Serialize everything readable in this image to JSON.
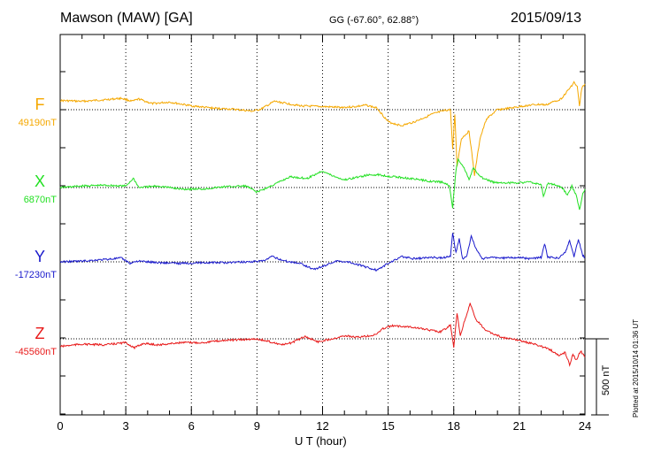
{
  "header": {
    "station": "Mawson (MAW)  [GA]",
    "coords": "GG (-67.60°,  62.88°)",
    "date": "2015/09/13"
  },
  "footer": {
    "plotted": "Plotted at 2015/10/14 01:36 UT"
  },
  "chart_data": {
    "type": "line",
    "title": "Mawson (MAW)  [GA]",
    "xlabel": "U T (hour)",
    "ylabel": "",
    "xlim": [
      0,
      24
    ],
    "x_ticks": [
      "0",
      "3",
      "6",
      "9",
      "12",
      "15",
      "18",
      "21",
      "24"
    ],
    "grid": true,
    "y_unit": "nT",
    "scale_bar": {
      "label": "500 nT",
      "value": 500
    },
    "series": [
      {
        "name": "F",
        "baseline_label": "49190nT",
        "baseline": 49190,
        "color": "#f5a800",
        "points": [
          [
            0,
            49250
          ],
          [
            1,
            49245
          ],
          [
            2,
            49255
          ],
          [
            2.8,
            49265
          ],
          [
            3.3,
            49245
          ],
          [
            3.6,
            49260
          ],
          [
            4.2,
            49230
          ],
          [
            5,
            49240
          ],
          [
            6,
            49215
          ],
          [
            7,
            49200
          ],
          [
            8,
            49192
          ],
          [
            8.8,
            49180
          ],
          [
            9.2,
            49195
          ],
          [
            9.8,
            49245
          ],
          [
            10.4,
            49230
          ],
          [
            11,
            49215
          ],
          [
            12,
            49210
          ],
          [
            12.8,
            49205
          ],
          [
            13.5,
            49210
          ],
          [
            14,
            49220
          ],
          [
            14.5,
            49200
          ],
          [
            15,
            49110
          ],
          [
            15.6,
            49085
          ],
          [
            16.2,
            49110
          ],
          [
            17,
            49160
          ],
          [
            17.6,
            49185
          ],
          [
            17.85,
            49190
          ],
          [
            17.95,
            48930
          ],
          [
            18.05,
            49160
          ],
          [
            18.15,
            48820
          ],
          [
            18.35,
            49000
          ],
          [
            18.7,
            49050
          ],
          [
            18.95,
            48760
          ],
          [
            19.2,
            49000
          ],
          [
            19.5,
            49130
          ],
          [
            20,
            49190
          ],
          [
            20.6,
            49200
          ],
          [
            21,
            49210
          ],
          [
            21.5,
            49220
          ],
          [
            22,
            49225
          ],
          [
            22.2,
            49220
          ],
          [
            22.6,
            49245
          ],
          [
            22.9,
            49260
          ],
          [
            23.3,
            49330
          ],
          [
            23.5,
            49370
          ],
          [
            23.65,
            49340
          ],
          [
            23.75,
            49210
          ],
          [
            23.85,
            49330
          ],
          [
            24,
            49360
          ]
        ]
      },
      {
        "name": "X",
        "baseline_label": "6870nT",
        "baseline": 6870,
        "color": "#22e022",
        "points": [
          [
            0,
            6870
          ],
          [
            1,
            6880
          ],
          [
            2,
            6885
          ],
          [
            3,
            6880
          ],
          [
            3.35,
            6930
          ],
          [
            3.6,
            6870
          ],
          [
            4.5,
            6880
          ],
          [
            5.5,
            6860
          ],
          [
            6.5,
            6860
          ],
          [
            7.5,
            6875
          ],
          [
            8.5,
            6880
          ],
          [
            9,
            6840
          ],
          [
            9.5,
            6870
          ],
          [
            10.5,
            6940
          ],
          [
            11.3,
            6930
          ],
          [
            12,
            6980
          ],
          [
            12.4,
            6950
          ],
          [
            13,
            6920
          ],
          [
            13.5,
            6935
          ],
          [
            14,
            6950
          ],
          [
            14.5,
            6955
          ],
          [
            15,
            6945
          ],
          [
            16,
            6930
          ],
          [
            17,
            6910
          ],
          [
            17.5,
            6905
          ],
          [
            17.8,
            6880
          ],
          [
            17.95,
            6740
          ],
          [
            18.1,
            6980
          ],
          [
            18.2,
            7060
          ],
          [
            18.5,
            6990
          ],
          [
            18.7,
            6920
          ],
          [
            18.9,
            7000
          ],
          [
            19.2,
            6940
          ],
          [
            19.8,
            6905
          ],
          [
            20.5,
            6900
          ],
          [
            21.5,
            6905
          ],
          [
            22,
            6890
          ],
          [
            22.1,
            6810
          ],
          [
            22.3,
            6900
          ],
          [
            22.8,
            6880
          ],
          [
            23,
            6860
          ],
          [
            23.2,
            6820
          ],
          [
            23.4,
            6880
          ],
          [
            23.6,
            6820
          ],
          [
            23.75,
            6720
          ],
          [
            23.9,
            6830
          ],
          [
            24,
            6860
          ]
        ]
      },
      {
        "name": "Y",
        "baseline_label": "-17230nT",
        "baseline": -17230,
        "color": "#1a1acc",
        "points": [
          [
            0,
            -17230
          ],
          [
            1,
            -17225
          ],
          [
            2,
            -17215
          ],
          [
            2.8,
            -17205
          ],
          [
            3.2,
            -17240
          ],
          [
            3.5,
            -17225
          ],
          [
            4.5,
            -17235
          ],
          [
            5.5,
            -17240
          ],
          [
            6.5,
            -17235
          ],
          [
            7.5,
            -17235
          ],
          [
            8.5,
            -17230
          ],
          [
            9.3,
            -17225
          ],
          [
            9.7,
            -17195
          ],
          [
            10.3,
            -17225
          ],
          [
            11,
            -17240
          ],
          [
            11.6,
            -17280
          ],
          [
            12,
            -17260
          ],
          [
            12.6,
            -17225
          ],
          [
            13.2,
            -17230
          ],
          [
            14,
            -17265
          ],
          [
            14.5,
            -17285
          ],
          [
            15,
            -17240
          ],
          [
            15.6,
            -17195
          ],
          [
            16.2,
            -17210
          ],
          [
            17,
            -17200
          ],
          [
            17.5,
            -17205
          ],
          [
            17.85,
            -17190
          ],
          [
            17.95,
            -17040
          ],
          [
            18.1,
            -17170
          ],
          [
            18.25,
            -17080
          ],
          [
            18.4,
            -17210
          ],
          [
            18.6,
            -17190
          ],
          [
            18.8,
            -17060
          ],
          [
            19,
            -17140
          ],
          [
            19.3,
            -17210
          ],
          [
            19.8,
            -17200
          ],
          [
            20.3,
            -17205
          ],
          [
            21,
            -17200
          ],
          [
            21.5,
            -17210
          ],
          [
            22,
            -17200
          ],
          [
            22.15,
            -17110
          ],
          [
            22.3,
            -17200
          ],
          [
            22.8,
            -17205
          ],
          [
            23.1,
            -17170
          ],
          [
            23.3,
            -17090
          ],
          [
            23.5,
            -17200
          ],
          [
            23.7,
            -17080
          ],
          [
            23.9,
            -17190
          ],
          [
            24,
            -17200
          ]
        ]
      },
      {
        "name": "Z",
        "baseline_label": "-45560nT",
        "baseline": -45560,
        "color": "#e81a1a",
        "points": [
          [
            0,
            -45610
          ],
          [
            1,
            -45595
          ],
          [
            2,
            -45600
          ],
          [
            3,
            -45585
          ],
          [
            3.4,
            -45620
          ],
          [
            3.8,
            -45590
          ],
          [
            4.5,
            -45600
          ],
          [
            5.5,
            -45585
          ],
          [
            6.5,
            -45585
          ],
          [
            7.5,
            -45570
          ],
          [
            8.5,
            -45565
          ],
          [
            9,
            -45560
          ],
          [
            9.6,
            -45580
          ],
          [
            10.2,
            -45600
          ],
          [
            10.6,
            -45585
          ],
          [
            11.2,
            -45545
          ],
          [
            11.8,
            -45580
          ],
          [
            12.4,
            -45560
          ],
          [
            13,
            -45540
          ],
          [
            13.6,
            -45550
          ],
          [
            14.4,
            -45535
          ],
          [
            14.8,
            -45490
          ],
          [
            15.2,
            -45475
          ],
          [
            16,
            -45480
          ],
          [
            16.8,
            -45500
          ],
          [
            17.4,
            -45515
          ],
          [
            17.85,
            -45470
          ],
          [
            18,
            -45620
          ],
          [
            18.15,
            -45390
          ],
          [
            18.3,
            -45540
          ],
          [
            18.5,
            -45440
          ],
          [
            18.75,
            -45330
          ],
          [
            19,
            -45430
          ],
          [
            19.5,
            -45510
          ],
          [
            20.3,
            -45555
          ],
          [
            21,
            -45570
          ],
          [
            21.8,
            -45600
          ],
          [
            22.4,
            -45630
          ],
          [
            22.8,
            -45670
          ],
          [
            23.1,
            -45650
          ],
          [
            23.3,
            -45730
          ],
          [
            23.45,
            -45660
          ],
          [
            23.6,
            -45700
          ],
          [
            23.8,
            -45640
          ],
          [
            24,
            -45680
          ]
        ]
      }
    ]
  }
}
